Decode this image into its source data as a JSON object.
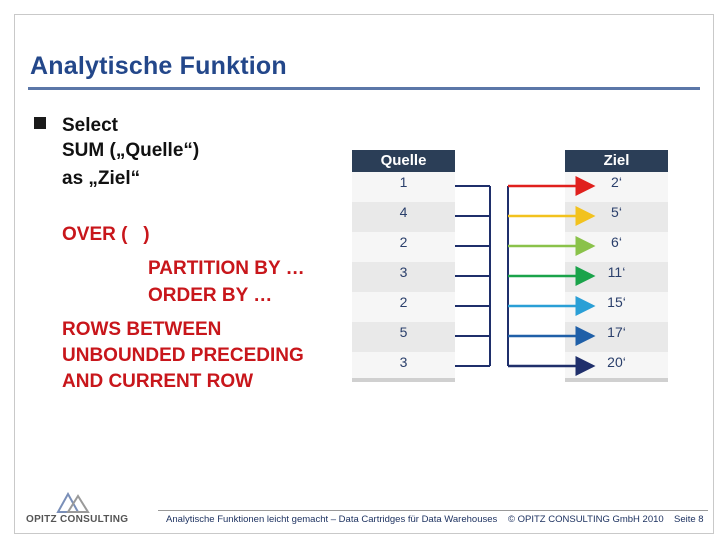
{
  "slide": {
    "title": "Analytische Funktion",
    "code_lines": [
      {
        "text": "Select",
        "color": "black"
      },
      {
        "text": "SUM („Quelle“)",
        "color": "black"
      },
      {
        "text": "as „Ziel“",
        "color": "black"
      },
      {
        "text": "OVER (   )",
        "color": "red"
      },
      {
        "text": "PARTITION BY …",
        "color": "red"
      },
      {
        "text": "ORDER BY …",
        "color": "red"
      },
      {
        "text": "ROWS BETWEEN",
        "color": "red"
      },
      {
        "text": "UNBOUNDED PRECEDING",
        "color": "red"
      },
      {
        "text": "AND CURRENT ROW",
        "color": "red"
      }
    ],
    "source_table": {
      "header": "Quelle",
      "values": [
        "1",
        "4",
        "2",
        "3",
        "2",
        "5",
        "3"
      ]
    },
    "target_table": {
      "header": "Ziel",
      "values": [
        "2‘",
        "5‘",
        "6‘",
        "11‘",
        "15‘",
        "17‘",
        "20‘"
      ]
    },
    "arrow_colors": [
      "#e0201d",
      "#f2c21e",
      "#8ac24a",
      "#1aa34a",
      "#2a9fd6",
      "#1f5fa8",
      "#1f2f6b"
    ],
    "footer": {
      "caption": "Analytische Funktionen leicht gemacht – Data Cartridges für Data Warehouses",
      "copyright": "© OPITZ CONSULTING GmbH 2010",
      "page": "Seite 8",
      "logo_text": "OPITZ CONSULTING"
    }
  }
}
